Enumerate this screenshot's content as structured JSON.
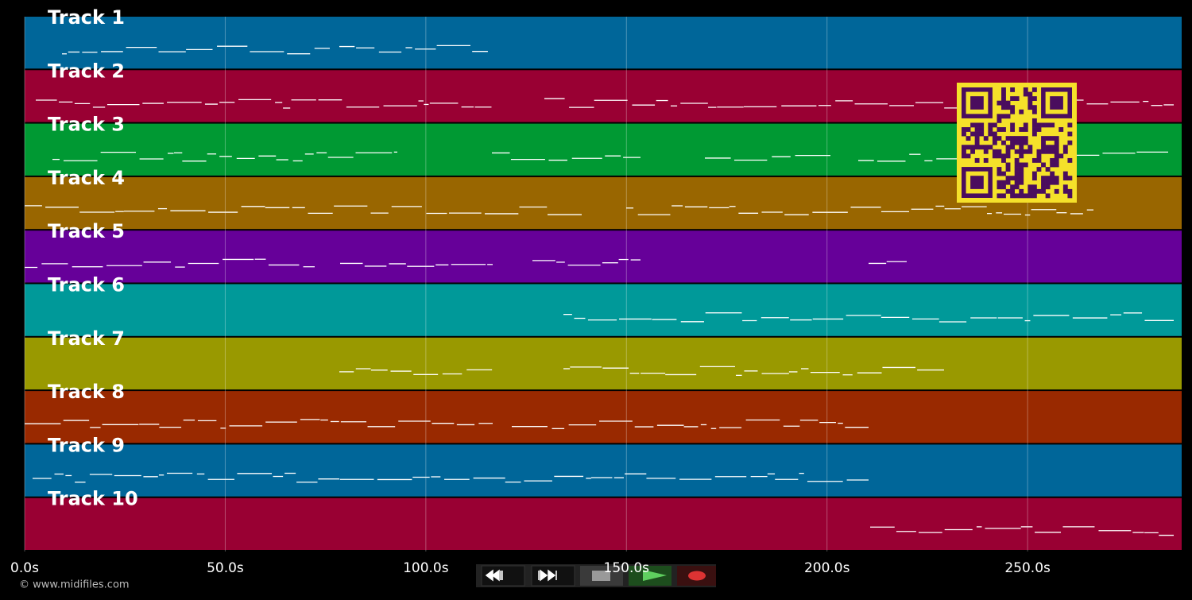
{
  "tracks": [
    {
      "label": "Track 1",
      "color": "#006699"
    },
    {
      "label": "Track 2",
      "color": "#990033"
    },
    {
      "label": "Track 3",
      "color": "#009933"
    },
    {
      "label": "Track 4",
      "color": "#996600"
    },
    {
      "label": "Track 5",
      "color": "#660099"
    },
    {
      "label": "Track 6",
      "color": "#009999"
    },
    {
      "label": "Track 7",
      "color": "#999900"
    },
    {
      "label": "Track 8",
      "color": "#992900"
    },
    {
      "label": "Track 9",
      "color": "#006699"
    },
    {
      "label": "Track 10",
      "color": "#990033"
    }
  ],
  "axis": {
    "xlim": [
      0,
      288.4
    ],
    "xticks": [
      {
        "value": 0,
        "label": "0.0s"
      },
      {
        "value": 50,
        "label": "50.0s"
      },
      {
        "value": 100,
        "label": "100.0s"
      },
      {
        "value": 150,
        "label": "150.0s"
      },
      {
        "value": 200,
        "label": "200.0s"
      },
      {
        "value": 250,
        "label": "250.0s"
      }
    ]
  },
  "footer": "© www.midifiles.com"
}
